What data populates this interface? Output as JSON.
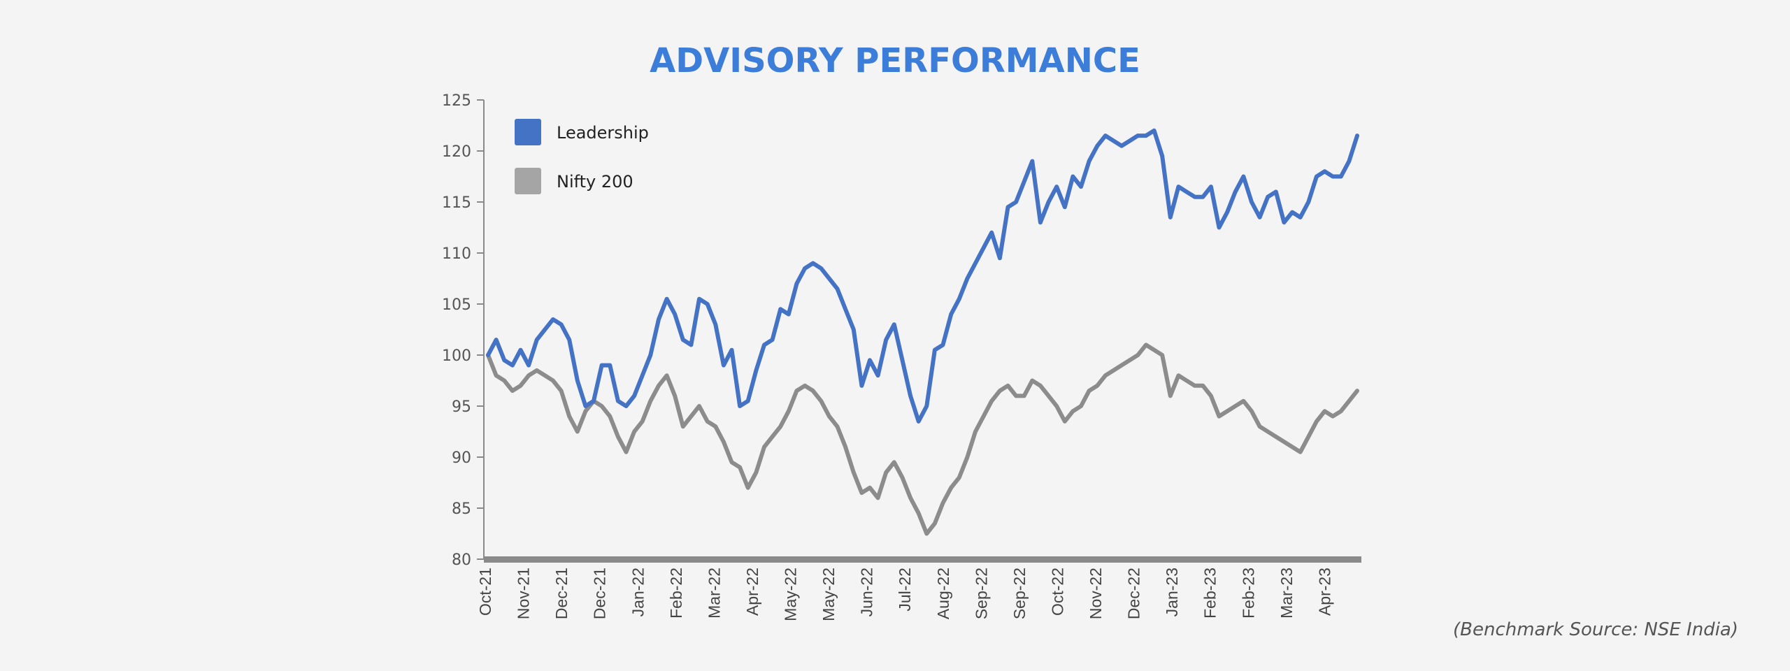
{
  "source_note": "(Benchmark Source: NSE India)",
  "chart_data": {
    "type": "line",
    "title": "ADVISORY PERFORMANCE",
    "xlabel": "",
    "ylabel": "",
    "ylim": [
      80,
      125
    ],
    "yticks": [
      80,
      85,
      90,
      95,
      100,
      105,
      110,
      115,
      120,
      125
    ],
    "x_tick_labels": [
      "Oct-21",
      "Nov-21",
      "Dec-21",
      "Dec-21",
      "Jan-22",
      "Feb-22",
      "Mar-22",
      "Apr-22",
      "May-22",
      "May-22",
      "Jun-22",
      "Jul-22",
      "Aug-22",
      "Sep-22",
      "Sep-22",
      "Oct-22",
      "Nov-22",
      "Dec-22",
      "Jan-23",
      "Feb-23",
      "Feb-23",
      "Mar-23",
      "Apr-23"
    ],
    "grid": false,
    "legend_position": "top-left",
    "series": [
      {
        "name": "Leadership",
        "color": "#4472c4",
        "values": [
          100,
          101.5,
          99.5,
          99,
          100.5,
          99,
          101.5,
          102.5,
          103.5,
          103,
          101.5,
          97.5,
          95,
          95.5,
          99,
          99,
          95.5,
          95,
          96,
          98,
          100,
          103.5,
          105.5,
          104,
          101.5,
          101,
          105.5,
          105,
          103,
          99,
          100.5,
          95,
          95.5,
          98.5,
          101,
          101.5,
          104.5,
          104,
          107,
          108.5,
          109,
          108.5,
          107.5,
          106.5,
          104.5,
          102.5,
          97,
          99.5,
          98,
          101.5,
          103,
          99.5,
          96,
          93.5,
          95,
          100.5,
          101,
          104,
          105.5,
          107.5,
          109,
          110.5,
          112,
          109.5,
          114.5,
          115,
          117,
          119,
          113,
          115,
          116.5,
          114.5,
          117.5,
          116.5,
          119,
          120.5,
          121.5,
          121,
          120.5,
          121,
          121.5,
          121.5,
          122,
          119.5,
          113.5,
          116.5,
          116,
          115.5,
          115.5,
          116.5,
          112.5,
          114,
          116,
          117.5,
          115,
          113.5,
          115.5,
          116,
          113,
          114,
          113.5,
          115,
          117.5,
          118,
          117.5,
          117.5,
          119,
          121.5
        ]
      },
      {
        "name": "Nifty 200",
        "color": "#8c8c8c",
        "values": [
          100,
          98,
          97.5,
          96.5,
          97,
          98,
          98.5,
          98,
          97.5,
          96.5,
          94,
          92.5,
          94.5,
          95.5,
          95,
          94,
          92,
          90.5,
          92.5,
          93.5,
          95.5,
          97,
          98,
          96,
          93,
          94,
          95,
          93.5,
          93,
          91.5,
          89.5,
          89,
          87,
          88.5,
          91,
          92,
          93,
          94.5,
          96.5,
          97,
          96.5,
          95.5,
          94,
          93,
          91,
          88.5,
          86.5,
          87,
          86,
          88.5,
          89.5,
          88,
          86,
          84.5,
          82.5,
          83.5,
          85.5,
          87,
          88,
          90,
          92.5,
          94,
          95.5,
          96.5,
          97,
          96,
          96,
          97.5,
          97,
          96,
          95,
          93.5,
          94.5,
          95,
          96.5,
          97,
          98,
          98.5,
          99,
          99.5,
          100,
          101,
          100.5,
          100,
          96,
          98,
          97.5,
          97,
          97,
          96,
          94,
          94.5,
          95,
          95.5,
          94.5,
          93,
          92.5,
          92,
          91.5,
          91,
          90.5,
          92,
          93.5,
          94.5,
          94,
          94.5,
          95.5,
          96.5
        ]
      }
    ]
  }
}
